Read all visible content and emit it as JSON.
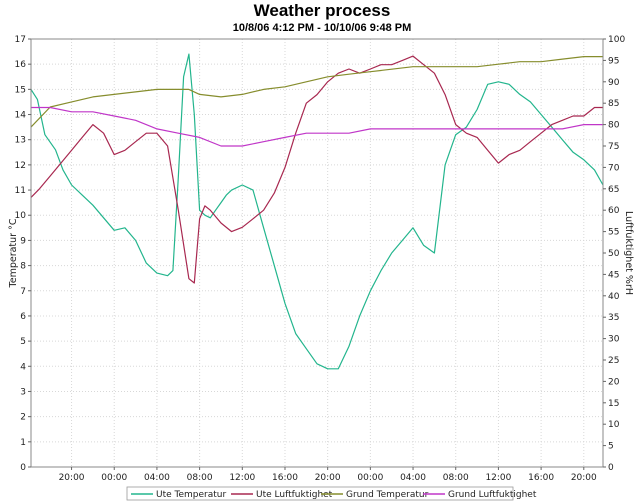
{
  "chart_data": {
    "type": "line",
    "title": "Weather process",
    "subtitle": "10/8/06 4:12 PM - 10/10/06 9:48 PM",
    "x_unit": "hours since 10/8/06 16:00",
    "x_range": [
      0.2,
      53.8
    ],
    "x_tick_values": [
      4,
      8,
      12,
      16,
      20,
      24,
      28,
      32,
      36,
      40,
      44,
      48,
      52
    ],
    "x_tick_labels": [
      "20:00",
      "00:00",
      "04:00",
      "08:00",
      "12:00",
      "16:00",
      "20:00",
      "00:00",
      "04:00",
      "08:00",
      "12:00",
      "16:00",
      "20:00"
    ],
    "y_left": {
      "label": "Temperatur °C",
      "min": 0,
      "max": 17,
      "ticks": [
        0,
        1,
        2,
        3,
        4,
        5,
        6,
        7,
        8,
        9,
        10,
        11,
        12,
        13,
        14,
        15,
        16,
        17
      ]
    },
    "y_right": {
      "label": "Luftfuktighet %rH",
      "min": 0,
      "max": 100,
      "ticks": [
        0,
        5,
        10,
        15,
        20,
        25,
        30,
        35,
        40,
        45,
        50,
        55,
        60,
        65,
        70,
        75,
        80,
        85,
        90,
        95,
        100
      ]
    },
    "grid": true,
    "legend_position": "bottom",
    "series": [
      {
        "name": "Ute Temperatur",
        "axis": "left",
        "color": "#23b58d",
        "x": [
          0.2,
          0.8,
          1.5,
          2.5,
          3.2,
          4,
          5,
          6,
          7,
          8,
          9,
          10,
          11,
          12,
          13,
          13.5,
          14,
          14.5,
          15,
          15.5,
          16,
          16.5,
          17,
          17.5,
          18,
          18.5,
          19,
          20,
          21,
          22,
          23,
          24,
          25,
          26,
          27,
          28,
          29,
          30,
          31,
          32,
          33,
          34,
          35,
          36,
          37,
          38,
          39,
          40,
          41,
          42,
          43,
          44,
          45,
          46,
          47,
          48,
          49,
          50,
          51,
          52,
          53,
          53.8
        ],
        "y": [
          15,
          14.6,
          13.2,
          12.6,
          11.8,
          11.2,
          10.8,
          10.4,
          9.9,
          9.4,
          9.5,
          9.0,
          8.1,
          7.7,
          7.6,
          7.8,
          11.5,
          15.5,
          16.4,
          14.0,
          10.2,
          10.0,
          9.9,
          10.2,
          10.5,
          10.8,
          11.0,
          11.2,
          11.0,
          9.5,
          8.0,
          6.5,
          5.3,
          4.7,
          4.1,
          3.9,
          3.9,
          4.8,
          6.0,
          7.0,
          7.8,
          8.5,
          9.0,
          9.5,
          8.8,
          8.5,
          12.0,
          13.2,
          13.5,
          14.2,
          15.2,
          15.3,
          15.2,
          14.8,
          14.5,
          14.0,
          13.5,
          13.0,
          12.5,
          12.2,
          11.8,
          11.2
        ]
      },
      {
        "name": "Ute Luftfuktighet",
        "axis": "right",
        "color": "#a82850",
        "x": [
          0.2,
          1,
          2,
          3,
          4,
          5,
          6,
          7,
          8,
          9,
          10,
          11,
          12,
          13,
          14,
          15,
          15.5,
          16,
          16.5,
          17,
          18,
          19,
          20,
          21,
          22,
          23,
          24,
          25,
          26,
          27,
          28,
          29,
          30,
          31,
          32,
          33,
          34,
          35,
          36,
          37,
          38,
          39,
          40,
          41,
          42,
          43,
          44,
          45,
          46,
          47,
          48,
          49,
          50,
          51,
          52,
          53,
          53.8
        ],
        "y": [
          63,
          65,
          68,
          71,
          74,
          77,
          80,
          78,
          73,
          74,
          76,
          78,
          78,
          75,
          60,
          44,
          43,
          58,
          61,
          60,
          57,
          55,
          56,
          58,
          60,
          64,
          70,
          78,
          85,
          87,
          90,
          92,
          93,
          92,
          93,
          94,
          94,
          95,
          96,
          94,
          92,
          87,
          80,
          78,
          77,
          74,
          71,
          73,
          74,
          76,
          78,
          80,
          81,
          82,
          82,
          84,
          84
        ]
      },
      {
        "name": "Grund Temperatur",
        "axis": "left",
        "color": "#868d2d",
        "x": [
          0.2,
          2,
          4,
          6,
          8,
          10,
          12,
          14,
          15,
          16,
          18,
          20,
          22,
          24,
          26,
          28,
          30,
          32,
          34,
          36,
          38,
          40,
          42,
          44,
          46,
          48,
          50,
          52,
          53.8
        ],
        "y": [
          13.5,
          14.3,
          14.5,
          14.7,
          14.8,
          14.9,
          15.0,
          15.0,
          15.0,
          14.8,
          14.7,
          14.8,
          15.0,
          15.1,
          15.3,
          15.5,
          15.6,
          15.7,
          15.8,
          15.9,
          15.9,
          15.9,
          15.9,
          16.0,
          16.1,
          16.1,
          16.2,
          16.3,
          16.3
        ]
      },
      {
        "name": "Grund Luftfuktighet",
        "axis": "right",
        "color": "#c036c8",
        "x": [
          0.2,
          2,
          4,
          6,
          8,
          10,
          12,
          14,
          16,
          18,
          20,
          22,
          24,
          26,
          28,
          30,
          32,
          34,
          36,
          38,
          40,
          42,
          44,
          46,
          48,
          50,
          52,
          53.8
        ],
        "y": [
          84,
          84,
          83,
          83,
          82,
          81,
          79,
          78,
          77,
          75,
          75,
          76,
          77,
          78,
          78,
          78,
          79,
          79,
          79,
          79,
          79,
          79,
          79,
          79,
          79,
          79,
          80,
          80
        ]
      }
    ]
  }
}
